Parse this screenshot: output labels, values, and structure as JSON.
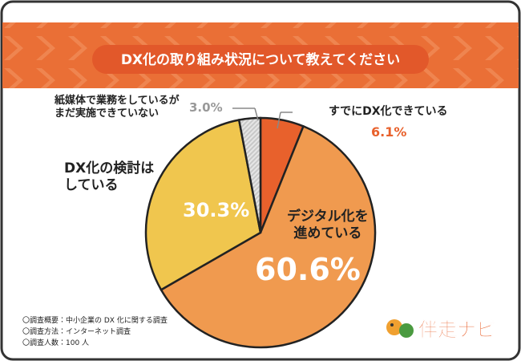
{
  "chart_data": {
    "type": "pie",
    "title": "DX化の取り組み状況について教えてください",
    "categories": [
      "すでにDX化できている",
      "デジタル化を\n進めている",
      "DX化の検討は\nしている",
      "紙媒体で業務をしているが\nまだ実施できていない"
    ],
    "values": [
      6.1,
      60.6,
      30.3,
      3.0
    ],
    "value_labels": [
      "6.1%",
      "60.6%",
      "30.3%",
      "3.0%"
    ],
    "colors": [
      "#e8612c",
      "#f09a4f",
      "#f0c64e",
      "#d9d9d9"
    ]
  },
  "notes": [
    "〇調査概要：中小企業の DX 化に関する調査",
    "〇調査方法：インターネット調査",
    "〇調査人数：100 人"
  ],
  "logo": "伴走ナビ"
}
